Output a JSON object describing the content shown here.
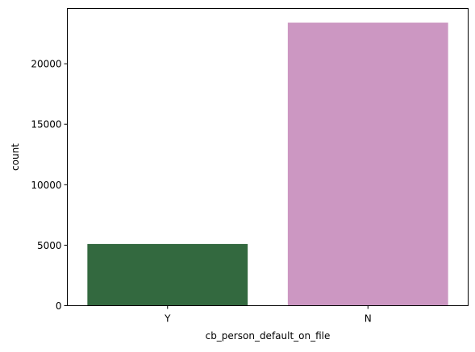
{
  "chart_data": {
    "type": "bar",
    "title": "",
    "xlabel": "cb_person_default_on_file",
    "ylabel": "count",
    "categories": [
      "Y",
      "N"
    ],
    "values": [
      5100,
      23400
    ],
    "colors": [
      "#33693f",
      "#cc97c2"
    ],
    "ylim": [
      0,
      24570
    ],
    "yticks": [
      0,
      5000,
      10000,
      15000,
      20000
    ],
    "ytick_labels": [
      "0",
      "5000",
      "10000",
      "15000",
      "20000"
    ],
    "grid": false,
    "legend": "none"
  }
}
